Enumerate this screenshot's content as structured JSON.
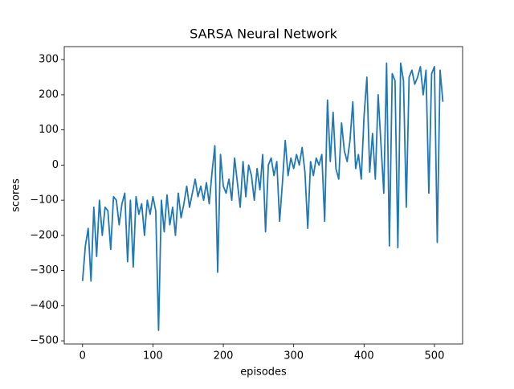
{
  "chart_data": {
    "type": "line",
    "title": "SARSA Neural Network",
    "xlabel": "episodes",
    "ylabel": "scores",
    "color": "#1f77b4",
    "x": [
      0,
      4,
      8,
      12,
      16,
      20,
      24,
      28,
      32,
      36,
      40,
      44,
      48,
      52,
      56,
      60,
      64,
      68,
      72,
      76,
      80,
      84,
      88,
      92,
      96,
      100,
      104,
      108,
      112,
      116,
      120,
      124,
      128,
      132,
      136,
      140,
      144,
      148,
      152,
      156,
      160,
      164,
      168,
      172,
      176,
      180,
      184,
      188,
      192,
      196,
      200,
      204,
      208,
      212,
      216,
      220,
      224,
      228,
      232,
      236,
      240,
      244,
      248,
      252,
      256,
      260,
      264,
      268,
      272,
      276,
      280,
      284,
      288,
      292,
      296,
      300,
      304,
      308,
      312,
      316,
      320,
      324,
      328,
      332,
      336,
      340,
      344,
      348,
      352,
      356,
      360,
      364,
      368,
      372,
      376,
      380,
      384,
      388,
      392,
      396,
      400,
      404,
      408,
      412,
      416,
      420,
      424,
      428,
      432,
      436,
      440,
      444,
      448,
      452,
      456,
      460,
      464,
      468,
      472,
      476,
      480,
      484,
      488,
      492,
      496,
      500,
      504,
      508,
      512
    ],
    "values": [
      -330,
      -230,
      -180,
      -330,
      -120,
      -260,
      -100,
      -200,
      -120,
      -130,
      -240,
      -90,
      -100,
      -170,
      -110,
      -80,
      -275,
      -100,
      -290,
      -90,
      -140,
      -110,
      -200,
      -100,
      -140,
      -90,
      -130,
      -470,
      -100,
      -190,
      -85,
      -170,
      -120,
      -200,
      -80,
      -150,
      -110,
      -60,
      -120,
      -80,
      -40,
      -90,
      -60,
      -100,
      -50,
      -110,
      -20,
      55,
      -305,
      30,
      -60,
      -80,
      -40,
      -100,
      20,
      -50,
      -120,
      10,
      -90,
      0,
      -30,
      -100,
      -10,
      -70,
      30,
      -190,
      0,
      20,
      -30,
      10,
      -160,
      -50,
      70,
      -30,
      20,
      -10,
      30,
      0,
      50,
      -20,
      -180,
      10,
      -30,
      20,
      0,
      30,
      -160,
      185,
      10,
      150,
      -10,
      -40,
      120,
      40,
      10,
      70,
      180,
      -10,
      30,
      -40,
      140,
      250,
      -20,
      90,
      -40,
      200,
      60,
      -80,
      290,
      -230,
      260,
      240,
      -235,
      290,
      240,
      -120,
      250,
      270,
      230,
      250,
      280,
      200,
      270,
      -80,
      260,
      280,
      -220,
      270,
      180
    ],
    "xlim": [
      -26,
      540
    ],
    "ylim": [
      -509,
      337
    ],
    "xticks": [
      0,
      100,
      200,
      300,
      400,
      500
    ],
    "yticks": [
      {
        "value": -500,
        "label": "−500"
      },
      {
        "value": -400,
        "label": "−400"
      },
      {
        "value": -300,
        "label": "−300"
      },
      {
        "value": -200,
        "label": "−200"
      },
      {
        "value": -100,
        "label": "−100"
      },
      0,
      100,
      200,
      300
    ]
  }
}
